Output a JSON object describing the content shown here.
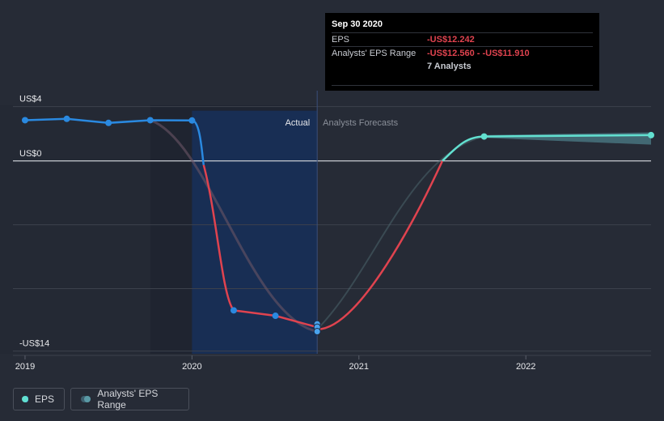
{
  "tooltip": {
    "date": "Sep 30 2020",
    "eps_label": "EPS",
    "eps_value": "-US$12.242",
    "range_label": "Analysts' EPS Range",
    "range_value": "-US$12.560 - -US$11.910",
    "analysts": "7 Analysts"
  },
  "legend": {
    "eps": "EPS",
    "range": "Analysts' EPS Range"
  },
  "chart_data": {
    "type": "line",
    "title": "",
    "y_tick_labels": [
      "US$4",
      "US$0",
      "-US$14"
    ],
    "y_ticks": [
      4,
      0,
      -14
    ],
    "x_tick_labels": [
      "2019",
      "2020",
      "2021",
      "2022"
    ],
    "x_ticks": [
      2019.0,
      2020.0,
      2021.0,
      2022.0
    ],
    "xlim": [
      2018.85,
      2022.75
    ],
    "ylim": [
      -14.2,
      4.1
    ],
    "region_labels": {
      "actual": "Actual",
      "forecast": "Analysts Forecasts"
    },
    "divider_x": 2020.75,
    "shaded_past_start": 2019.75,
    "colors": {
      "eps": "#2a89e0",
      "eps_negative": "#e0434f",
      "forecast": "#62e0d0",
      "range": "#5a9aa6"
    },
    "series": [
      {
        "name": "EPS",
        "points": [
          {
            "x": 2019.0,
            "y": 3.0
          },
          {
            "x": 2019.25,
            "y": 3.1
          },
          {
            "x": 2019.5,
            "y": 2.8
          },
          {
            "x": 2019.75,
            "y": 3.0
          },
          {
            "x": 2020.0,
            "y": 2.98
          },
          {
            "x": 2020.25,
            "y": -11.0
          },
          {
            "x": 2020.5,
            "y": -11.4
          },
          {
            "x": 2020.75,
            "y": -12.242
          }
        ]
      },
      {
        "name": "Analysts' EPS Range",
        "points": [
          {
            "x": 2020.75,
            "y": -12.56,
            "high": -11.91
          },
          {
            "x": 2021.75,
            "y": 1.8
          },
          {
            "x": 2022.75,
            "y": 1.9
          }
        ]
      }
    ],
    "range_band": [
      {
        "x": 2021.75,
        "low": 1.7,
        "high": 1.9
      },
      {
        "x": 2022.75,
        "low": 1.2,
        "high": 2.1
      }
    ]
  }
}
